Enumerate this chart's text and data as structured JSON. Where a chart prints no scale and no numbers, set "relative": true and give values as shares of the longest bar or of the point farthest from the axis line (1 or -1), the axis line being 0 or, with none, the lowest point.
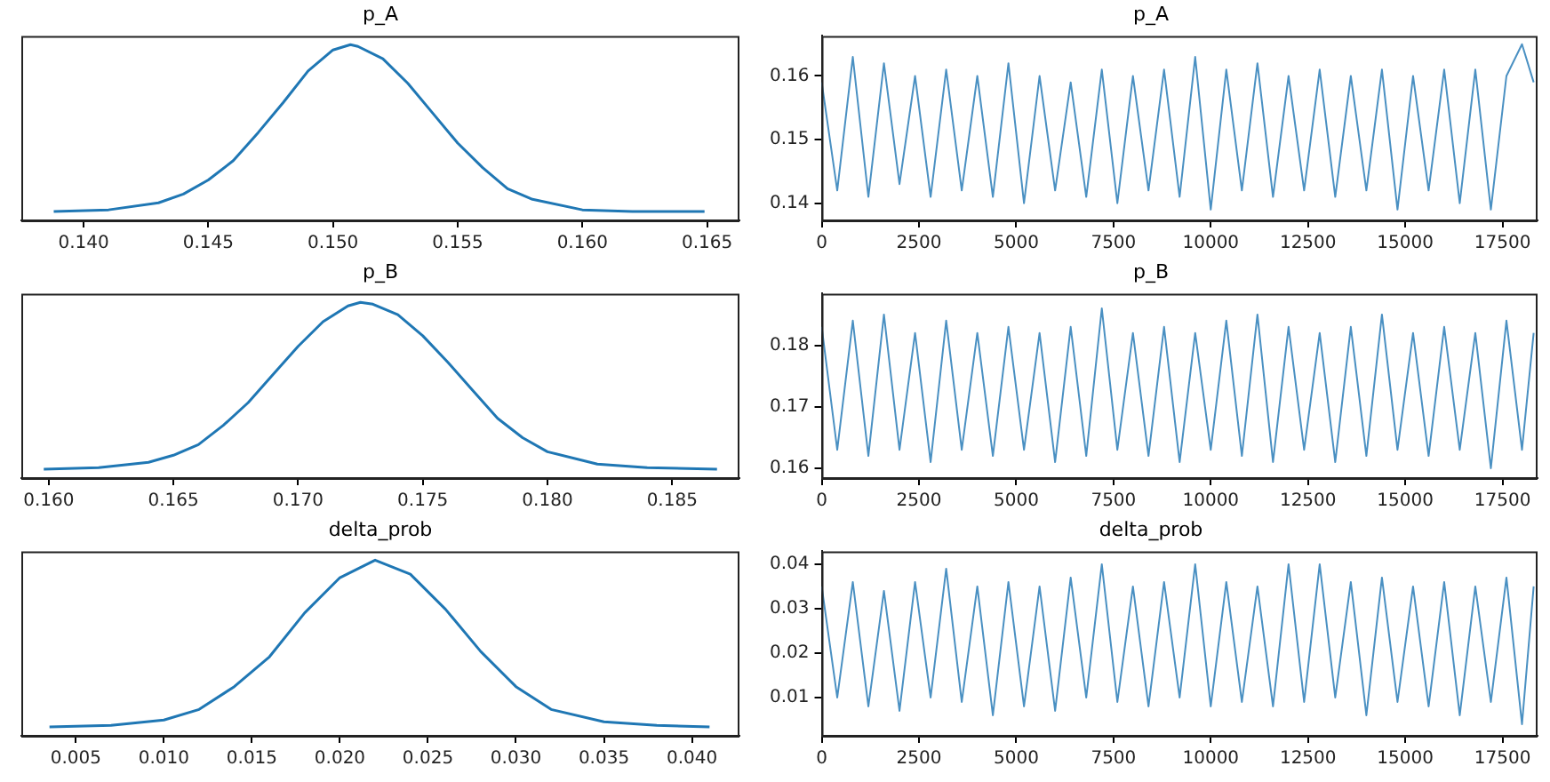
{
  "chart_data": [
    {
      "type": "line",
      "title": "p_A",
      "relative": true,
      "xlim": [
        0.1375,
        0.1663
      ],
      "xticks": [
        {
          "value": 0.14,
          "label": "0.140"
        },
        {
          "value": 0.145,
          "label": "0.145"
        },
        {
          "value": 0.15,
          "label": "0.150"
        },
        {
          "value": 0.155,
          "label": "0.155"
        },
        {
          "value": 0.16,
          "label": "0.160"
        },
        {
          "value": 0.165,
          "label": "0.165"
        }
      ],
      "grid": false,
      "marker": "none",
      "series": [
        {
          "color": "#1f77b4",
          "x": [
            0.1388,
            0.141,
            0.143,
            0.144,
            0.145,
            0.146,
            0.147,
            0.148,
            0.149,
            0.15,
            0.1507,
            0.151,
            0.152,
            0.153,
            0.154,
            0.155,
            0.156,
            0.157,
            0.158,
            0.16,
            0.162,
            0.1649
          ],
          "values": [
            0.05,
            0.06,
            0.1,
            0.15,
            0.23,
            0.34,
            0.5,
            0.67,
            0.85,
            0.97,
            1,
            0.99,
            0.92,
            0.78,
            0.61,
            0.44,
            0.3,
            0.18,
            0.12,
            0.06,
            0.05,
            0.05
          ]
        }
      ]
    },
    {
      "type": "line",
      "title": "p_A",
      "xlim": [
        0,
        18400
      ],
      "xticks": [
        0,
        2500,
        5000,
        7500,
        10000,
        12500,
        15000,
        17500
      ],
      "ylim": [
        0.1373,
        0.1663
      ],
      "yticks": [
        0.14,
        0.15,
        0.16
      ],
      "grid": false,
      "marker": "none",
      "series": [
        {
          "color": "#4a90c2",
          "x": [
            0,
            400,
            800,
            1200,
            1600,
            2000,
            2400,
            2800,
            3200,
            3600,
            4000,
            4400,
            4800,
            5200,
            5600,
            6000,
            6400,
            6800,
            7200,
            7600,
            8000,
            8400,
            8800,
            9200,
            9600,
            10000,
            10400,
            10800,
            11200,
            11600,
            12000,
            12400,
            12800,
            13200,
            13600,
            14000,
            14400,
            14800,
            15200,
            15600,
            16000,
            16400,
            16800,
            17200,
            17600,
            18000,
            18300
          ],
          "values": [
            0.159,
            0.142,
            0.163,
            0.141,
            0.162,
            0.143,
            0.16,
            0.141,
            0.161,
            0.142,
            0.16,
            0.141,
            0.162,
            0.14,
            0.16,
            0.142,
            0.159,
            0.141,
            0.161,
            0.14,
            0.16,
            0.142,
            0.161,
            0.141,
            0.163,
            0.139,
            0.161,
            0.142,
            0.162,
            0.141,
            0.16,
            0.142,
            0.161,
            0.141,
            0.16,
            0.142,
            0.161,
            0.139,
            0.16,
            0.142,
            0.161,
            0.14,
            0.161,
            0.139,
            0.16,
            0.165,
            0.159
          ]
        }
      ]
    },
    {
      "type": "line",
      "title": "p_B",
      "relative": true,
      "xlim": [
        0.1589,
        0.1877
      ],
      "xticks": [
        {
          "value": 0.16,
          "label": "0.160"
        },
        {
          "value": 0.165,
          "label": "0.165"
        },
        {
          "value": 0.17,
          "label": "0.170"
        },
        {
          "value": 0.175,
          "label": "0.175"
        },
        {
          "value": 0.18,
          "label": "0.180"
        },
        {
          "value": 0.185,
          "label": "0.185"
        }
      ],
      "grid": false,
      "marker": "none",
      "series": [
        {
          "color": "#1f77b4",
          "x": [
            0.1598,
            0.162,
            0.164,
            0.165,
            0.166,
            0.167,
            0.168,
            0.169,
            0.17,
            0.171,
            0.172,
            0.1725,
            0.173,
            0.174,
            0.175,
            0.176,
            0.177,
            0.178,
            0.179,
            0.18,
            0.182,
            0.184,
            0.1868
          ],
          "values": [
            0.05,
            0.06,
            0.09,
            0.13,
            0.19,
            0.3,
            0.43,
            0.59,
            0.75,
            0.89,
            0.98,
            1,
            0.99,
            0.93,
            0.81,
            0.66,
            0.5,
            0.34,
            0.23,
            0.15,
            0.08,
            0.06,
            0.05
          ]
        }
      ]
    },
    {
      "type": "line",
      "title": "p_B",
      "xlim": [
        0,
        18400
      ],
      "xticks": [
        0,
        2500,
        5000,
        7500,
        10000,
        12500,
        15000,
        17500
      ],
      "ylim": [
        0.1584,
        0.1884
      ],
      "yticks": [
        0.16,
        0.17,
        0.18
      ],
      "grid": false,
      "marker": "none",
      "series": [
        {
          "color": "#4a90c2",
          "x": [
            0,
            400,
            800,
            1200,
            1600,
            2000,
            2400,
            2800,
            3200,
            3600,
            4000,
            4400,
            4800,
            5200,
            5600,
            6000,
            6400,
            6800,
            7200,
            7600,
            8000,
            8400,
            8800,
            9200,
            9600,
            10000,
            10400,
            10800,
            11200,
            11600,
            12000,
            12400,
            12800,
            13200,
            13600,
            14000,
            14400,
            14800,
            15200,
            15600,
            16000,
            16400,
            16800,
            17200,
            17600,
            18000,
            18300
          ],
          "values": [
            0.183,
            0.163,
            0.184,
            0.162,
            0.185,
            0.163,
            0.182,
            0.161,
            0.184,
            0.163,
            0.182,
            0.162,
            0.183,
            0.163,
            0.182,
            0.161,
            0.183,
            0.162,
            0.186,
            0.163,
            0.182,
            0.162,
            0.183,
            0.161,
            0.182,
            0.163,
            0.184,
            0.162,
            0.185,
            0.161,
            0.183,
            0.163,
            0.182,
            0.161,
            0.183,
            0.162,
            0.185,
            0.163,
            0.182,
            0.162,
            0.183,
            0.163,
            0.182,
            0.16,
            0.184,
            0.163,
            0.182
          ]
        }
      ]
    },
    {
      "type": "line",
      "title": "delta_prob",
      "relative": true,
      "xlim": [
        0.0019,
        0.0427
      ],
      "xticks": [
        {
          "value": 0.005,
          "label": "0.005"
        },
        {
          "value": 0.01,
          "label": "0.010"
        },
        {
          "value": 0.015,
          "label": "0.015"
        },
        {
          "value": 0.02,
          "label": "0.020"
        },
        {
          "value": 0.025,
          "label": "0.025"
        },
        {
          "value": 0.03,
          "label": "0.030"
        },
        {
          "value": 0.035,
          "label": "0.035"
        },
        {
          "value": 0.04,
          "label": "0.040"
        }
      ],
      "grid": false,
      "marker": "none",
      "series": [
        {
          "color": "#1f77b4",
          "x": [
            0.0035,
            0.007,
            0.01,
            0.012,
            0.014,
            0.016,
            0.018,
            0.02,
            0.022,
            0.024,
            0.026,
            0.028,
            0.03,
            0.032,
            0.035,
            0.038,
            0.041
          ],
          "values": [
            0.05,
            0.06,
            0.09,
            0.15,
            0.28,
            0.45,
            0.7,
            0.9,
            1,
            0.92,
            0.72,
            0.48,
            0.28,
            0.15,
            0.08,
            0.06,
            0.05
          ]
        }
      ]
    },
    {
      "type": "line",
      "title": "delta_prob",
      "xlim": [
        0,
        18400
      ],
      "xticks": [
        0,
        2500,
        5000,
        7500,
        10000,
        12500,
        15000,
        17500
      ],
      "ylim": [
        0.0014,
        0.0429
      ],
      "yticks": [
        0.01,
        0.02,
        0.03,
        0.04
      ],
      "grid": false,
      "marker": "none",
      "series": [
        {
          "color": "#4a90c2",
          "x": [
            0,
            400,
            800,
            1200,
            1600,
            2000,
            2400,
            2800,
            3200,
            3600,
            4000,
            4400,
            4800,
            5200,
            5600,
            6000,
            6400,
            6800,
            7200,
            7600,
            8000,
            8400,
            8800,
            9200,
            9600,
            10000,
            10400,
            10800,
            11200,
            11600,
            12000,
            12400,
            12800,
            13200,
            13600,
            14000,
            14400,
            14800,
            15200,
            15600,
            16000,
            16400,
            16800,
            17200,
            17600,
            18000,
            18300
          ],
          "values": [
            0.035,
            0.01,
            0.036,
            0.008,
            0.034,
            0.007,
            0.036,
            0.01,
            0.039,
            0.009,
            0.035,
            0.006,
            0.036,
            0.008,
            0.035,
            0.007,
            0.037,
            0.01,
            0.04,
            0.009,
            0.035,
            0.008,
            0.036,
            0.01,
            0.04,
            0.008,
            0.036,
            0.009,
            0.035,
            0.008,
            0.04,
            0.009,
            0.04,
            0.01,
            0.036,
            0.006,
            0.037,
            0.009,
            0.035,
            0.008,
            0.036,
            0.006,
            0.035,
            0.009,
            0.037,
            0.004,
            0.035
          ]
        }
      ]
    }
  ]
}
